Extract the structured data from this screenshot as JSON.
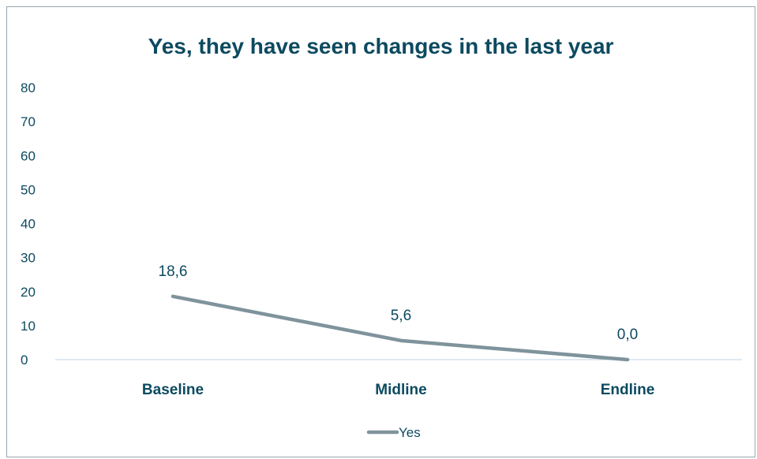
{
  "chart_data": {
    "type": "line",
    "title": "Yes, they have seen changes in the last year",
    "categories": [
      "Baseline",
      "Midline",
      "Endline"
    ],
    "series": [
      {
        "name": "Yes",
        "values": [
          18.6,
          5.6,
          0.0
        ],
        "labels": [
          "18,6",
          "5,6",
          "0,0"
        ]
      }
    ],
    "y_ticks": [
      "0",
      "10",
      "20",
      "30",
      "40",
      "50",
      "60",
      "70",
      "80"
    ],
    "ylim": [
      0,
      80
    ],
    "xlabel": "",
    "ylabel": "",
    "grid": false,
    "legend_position": "bottom",
    "colors": {
      "line": "#7f939c",
      "text": "#0c4a60",
      "axis": "#bcd3e6",
      "border": "#9aa7ad"
    }
  }
}
